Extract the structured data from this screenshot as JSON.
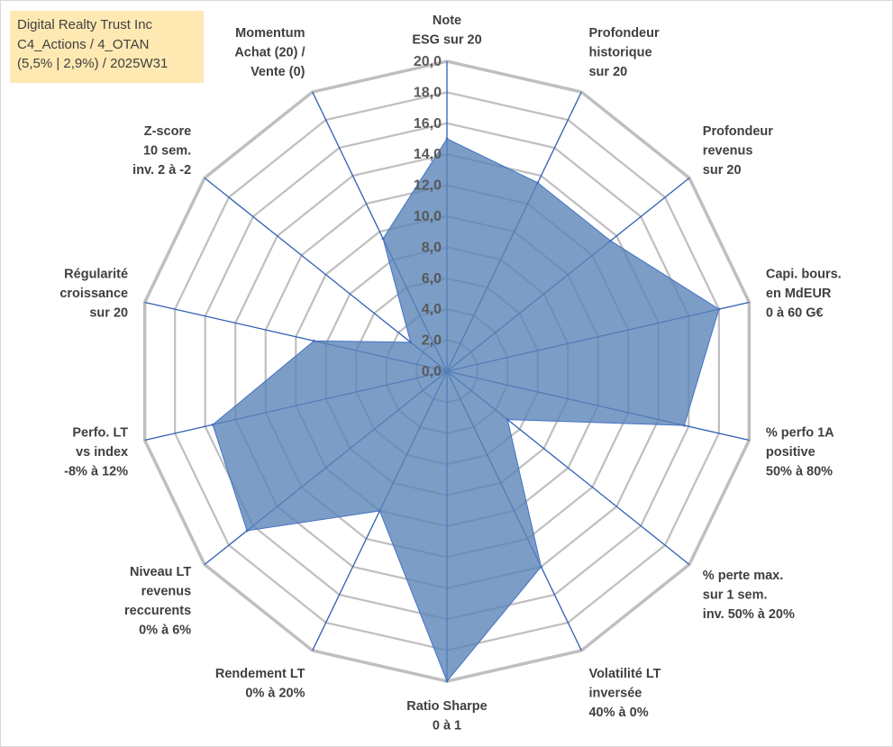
{
  "info_box": {
    "line1": "Digital Realty Trust Inc",
    "line2": "C4_Actions / 4_OTAN",
    "line3": "(5,5% | 2,9%) / 2025W31"
  },
  "colors": {
    "grid": "#bfbfbf",
    "spoke": "#2e5fb3",
    "fill": "#5b85b8",
    "info_bg": "#ffe9b3"
  },
  "chart_data": {
    "type": "radar",
    "title": "",
    "rlim": [
      0,
      20
    ],
    "r_ticks": [
      "0,0",
      "2,0",
      "4,0",
      "6,0",
      "8,0",
      "10,0",
      "12,0",
      "14,0",
      "16,0",
      "18,0",
      "20,0"
    ],
    "grid": true,
    "axes": [
      [
        "Note",
        "ESG sur 20"
      ],
      [
        "Profondeur",
        "historique",
        "sur 20"
      ],
      [
        "Profondeur",
        "revenus",
        "sur 20"
      ],
      [
        "Capi. bours.",
        "en MdEUR",
        "0 à 60 G€"
      ],
      [
        "% perfo 1A",
        "positive",
        "50% à 80%"
      ],
      [
        "% perte max.",
        "sur 1 sem.",
        "inv. 50% à 20%"
      ],
      [
        "Volatilité LT",
        "inversée",
        "40% à 0%"
      ],
      [
        "Ratio Sharpe",
        "0 à 1"
      ],
      [
        "Rendement LT",
        "0% à 20%"
      ],
      [
        "Niveau LT",
        "revenus",
        "reccurents",
        "0% à 6%"
      ],
      [
        "Perfo. LT",
        "vs index",
        "-8% à 12%"
      ],
      [
        "Régularité",
        "croissance",
        "sur 20"
      ],
      [
        "Z-score",
        "10 sem.",
        "inv. 2 à -2"
      ],
      [
        "Momentum",
        "Achat (20) /",
        "Vente (0)"
      ]
    ],
    "series": [
      {
        "values": [
          15.0,
          13.5,
          13.5,
          18.0,
          15.7,
          5.0,
          14.0,
          20.0,
          10.0,
          16.5,
          15.5,
          8.8,
          3.0,
          9.5
        ]
      }
    ]
  }
}
